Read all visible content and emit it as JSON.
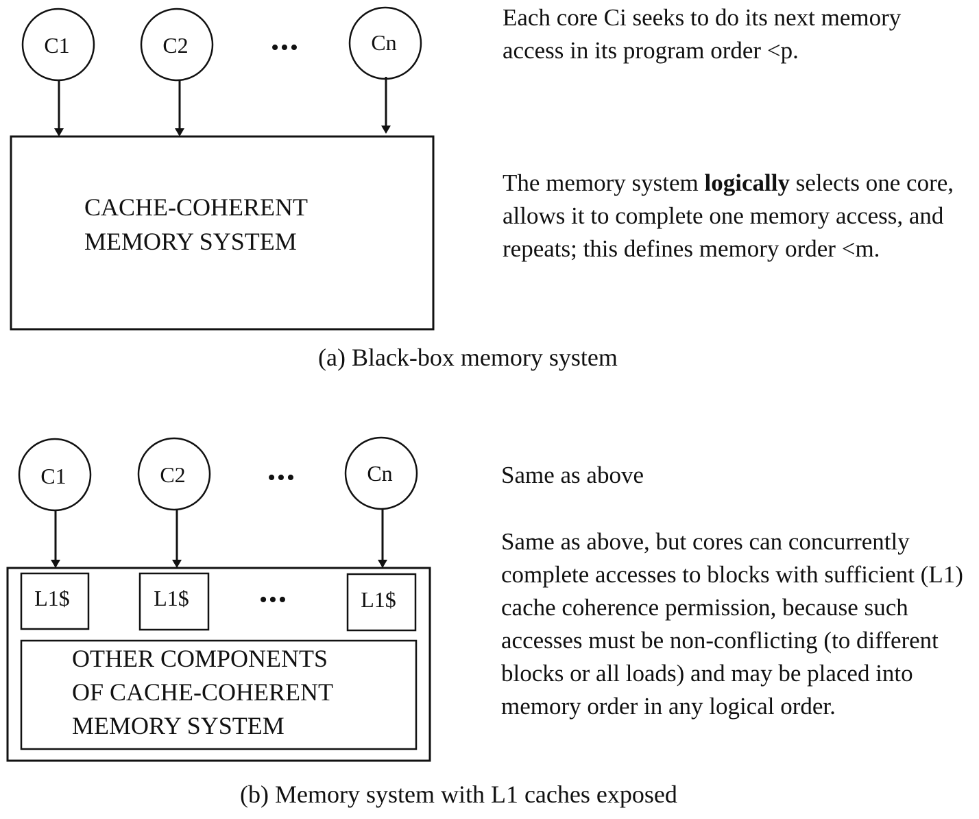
{
  "panel_a": {
    "cores": [
      "C1",
      "C2",
      "Cn"
    ],
    "ellipsis": "•••",
    "memory_box": {
      "line1": "CACHE-COHERENT",
      "line2": "MEMORY SYSTEM"
    },
    "description_1": "Each core Ci seeks to do its next memory access in its program order <p.",
    "description_2": {
      "before": "The memory system ",
      "bold": "logically",
      "after": " selects one core, allows it to complete one memory access, and repeats; this defines memory order <m."
    },
    "caption": "(a) Black-box memory system"
  },
  "panel_b": {
    "cores": [
      "C1",
      "C2",
      "Cn"
    ],
    "ellipsis": "•••",
    "caches": [
      "L1$",
      "L1$",
      "L1$"
    ],
    "cache_ellipsis": "•••",
    "other_box": {
      "line1": "OTHER COMPONENTS",
      "line2": "OF CACHE-COHERENT",
      "line3": "MEMORY SYSTEM"
    },
    "description_1": "Same as above",
    "description_2": "Same as above, but cores can concurrently complete accesses to blocks with sufficient (L1) cache coherence permission, because such accesses must be non-conflicting (to different blocks or all loads) and may be placed into memory order in any logical order.",
    "caption": "(b) Memory system with L1 caches exposed"
  }
}
